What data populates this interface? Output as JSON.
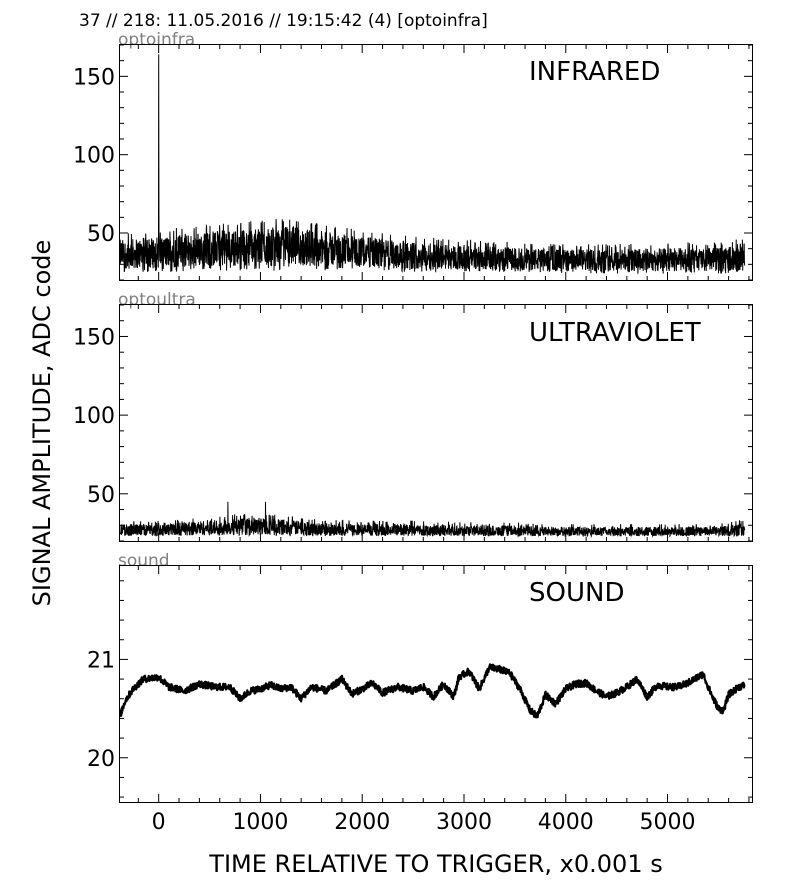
{
  "figure": {
    "header": "37 // 218:   11.05.2016 // 19:15:42 (4)  [optoinfra]",
    "xlabel": "TIME RELATIVE TO TRIGGER,   x0.001 s",
    "ylabel": "SIGNAL AMPLITUDE,  ADC code"
  },
  "chart_data": [
    {
      "type": "line",
      "channel": "optoinfra",
      "title": "INFRARED",
      "xlim": [
        -380,
        5830
      ],
      "ylim": [
        20,
        170
      ],
      "x_ticks": [
        0,
        1000,
        2000,
        3000,
        4000,
        5000
      ],
      "y_ticks": [
        50,
        100,
        150
      ],
      "y_tick_labels": [
        "50",
        "100",
        "150"
      ],
      "x_range": [
        -380,
        5760
      ],
      "envelope_x": [
        -380,
        0,
        500,
        1000,
        1300,
        1600,
        2000,
        2500,
        3000,
        3500,
        4000,
        4500,
        5000,
        5500,
        5760
      ],
      "envelope_low": [
        25,
        25,
        26,
        26,
        25,
        26,
        26,
        25,
        25,
        25,
        24,
        24,
        24,
        24,
        24
      ],
      "envelope_high": [
        50,
        52,
        56,
        58,
        60,
        56,
        52,
        48,
        46,
        44,
        43,
        43,
        44,
        44,
        48
      ],
      "spikes": [
        {
          "x": 0,
          "y": 164
        }
      ]
    },
    {
      "type": "line",
      "channel": "optoultra",
      "title": "ULTRAVIOLET",
      "xlim": [
        -380,
        5830
      ],
      "ylim": [
        20,
        170
      ],
      "x_ticks": [
        0,
        1000,
        2000,
        3000,
        4000,
        5000
      ],
      "y_ticks": [
        50,
        100,
        150
      ],
      "y_tick_labels": [
        "50",
        "100",
        "150"
      ],
      "x_range": [
        -380,
        5760
      ],
      "envelope_x": [
        -380,
        0,
        500,
        1000,
        1300,
        1600,
        2000,
        2500,
        3000,
        3500,
        4000,
        4500,
        5000,
        5500,
        5760
      ],
      "envelope_low": [
        23,
        23,
        23,
        23,
        23,
        23,
        23,
        23,
        23,
        23,
        23,
        23,
        23,
        23,
        23
      ],
      "envelope_high": [
        33,
        33,
        36,
        38,
        36,
        34,
        33,
        33,
        32,
        32,
        31,
        31,
        31,
        31,
        34
      ],
      "spikes": [
        {
          "x": 680,
          "y": 45
        },
        {
          "x": 1050,
          "y": 45
        }
      ]
    },
    {
      "type": "line",
      "channel": "sound",
      "title": "SOUND",
      "xlim": [
        -380,
        5830
      ],
      "ylim": [
        19.55,
        21.95
      ],
      "x_ticks": [
        0,
        1000,
        2000,
        3000,
        4000,
        5000
      ],
      "y_ticks": [
        20,
        21
      ],
      "y_tick_labels": [
        "20",
        "21"
      ],
      "x": [
        -380,
        -330,
        -250,
        -150,
        0,
        100,
        250,
        400,
        550,
        700,
        800,
        900,
        1000,
        1100,
        1200,
        1300,
        1400,
        1500,
        1650,
        1800,
        1900,
        2000,
        2100,
        2200,
        2350,
        2500,
        2600,
        2700,
        2800,
        2900,
        2950,
        3050,
        3150,
        3250,
        3350,
        3450,
        3550,
        3650,
        3720,
        3800,
        3900,
        4000,
        4100,
        4200,
        4300,
        4400,
        4500,
        4600,
        4700,
        4800,
        4900,
        5000,
        5100,
        5200,
        5300,
        5350,
        5400,
        5450,
        5500,
        5550,
        5600,
        5650,
        5700,
        5760
      ],
      "y": [
        20.42,
        20.58,
        20.7,
        20.8,
        20.82,
        20.72,
        20.68,
        20.75,
        20.72,
        20.72,
        20.6,
        20.68,
        20.7,
        20.74,
        20.7,
        20.72,
        20.6,
        20.72,
        20.68,
        20.8,
        20.65,
        20.7,
        20.76,
        20.66,
        20.72,
        20.68,
        20.72,
        20.62,
        20.75,
        20.62,
        20.82,
        20.88,
        20.7,
        20.92,
        20.9,
        20.86,
        20.7,
        20.48,
        20.42,
        20.64,
        20.55,
        20.7,
        20.75,
        20.76,
        20.68,
        20.62,
        20.66,
        20.72,
        20.8,
        20.62,
        20.74,
        20.72,
        20.72,
        20.76,
        20.82,
        20.85,
        20.72,
        20.6,
        20.5,
        20.48,
        20.64,
        20.68,
        20.72,
        20.74
      ]
    }
  ]
}
